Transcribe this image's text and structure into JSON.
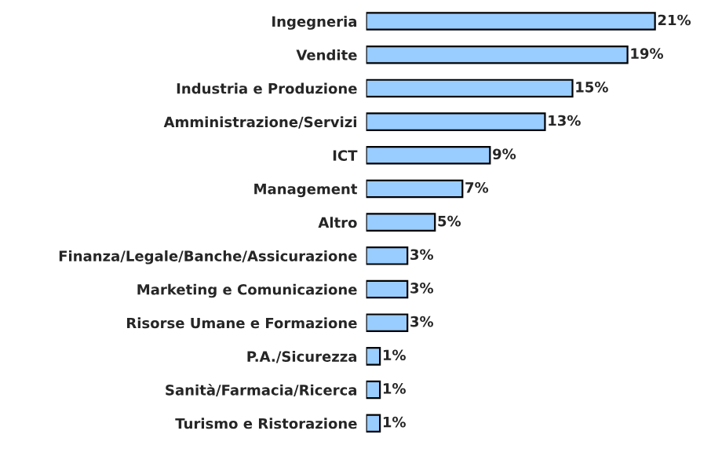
{
  "chart_data": {
    "type": "bar",
    "orientation": "horizontal",
    "categories": [
      "Ingegneria",
      "Vendite",
      "Industria e Produzione",
      "Amministrazione/Servizi",
      "ICT",
      "Management",
      "Altro",
      "Finanza/Legale/Banche/Assicurazione",
      "Marketing e Comunicazione",
      "Risorse Umane e Formazione",
      "P.A./Sicurezza",
      "Sanità/Farmacia/Ricerca",
      "Turismo e Ristorazione"
    ],
    "values": [
      21,
      19,
      15,
      13,
      9,
      7,
      5,
      3,
      3,
      3,
      1,
      1,
      1
    ],
    "value_labels": [
      "21%",
      "19%",
      "15%",
      "13%",
      "9%",
      "7%",
      "5%",
      "3%",
      "3%",
      "3%",
      "1%",
      "1%",
      "1%"
    ],
    "color": "#99ccff",
    "grid": false,
    "legend": false
  }
}
